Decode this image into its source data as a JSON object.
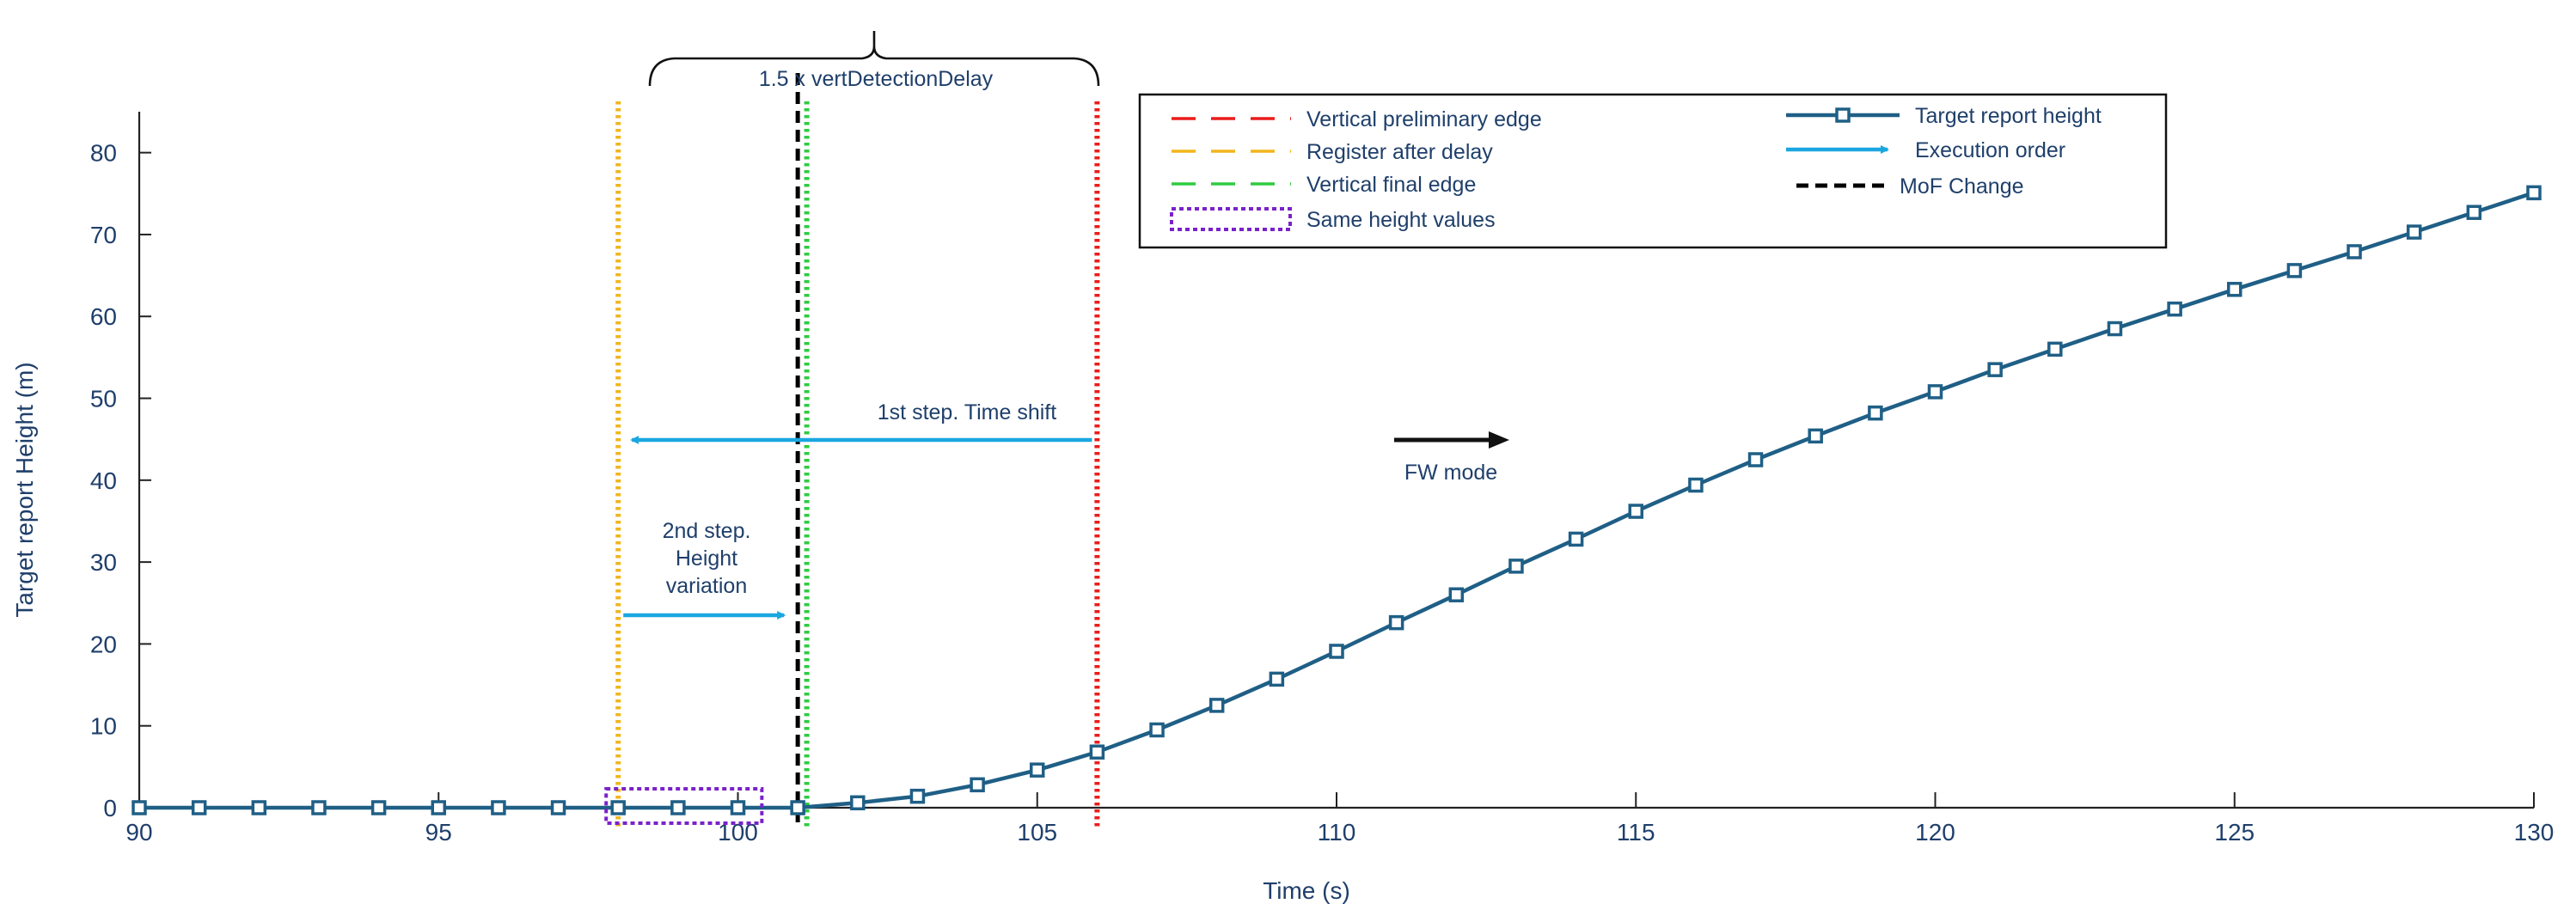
{
  "chart_data": {
    "type": "line",
    "xlabel": "Time (s)",
    "ylabel": "Target report Height (m)",
    "xlim": [
      90,
      130
    ],
    "ylim": [
      0,
      85
    ],
    "x_ticks": [
      90,
      95,
      100,
      105,
      110,
      115,
      120,
      125,
      130
    ],
    "y_ticks": [
      0,
      10,
      20,
      30,
      40,
      50,
      60,
      70,
      80
    ],
    "grid": false,
    "legend_position": "top",
    "series": [
      {
        "name": "Target report height",
        "color": "#1f5f86",
        "marker": "square",
        "x": [
          90,
          91,
          92,
          93,
          94,
          95,
          96,
          97,
          98,
          99,
          100,
          101,
          102,
          103,
          104,
          105,
          106,
          107,
          108,
          109,
          110,
          111,
          112,
          113,
          114,
          115,
          116,
          117,
          118,
          119,
          120,
          121,
          122,
          123,
          124,
          125,
          126,
          127,
          128,
          129,
          130
        ],
        "y": [
          0,
          0,
          0,
          0,
          0,
          0,
          0,
          0,
          0,
          0,
          0,
          0,
          0.6,
          1.4,
          2.8,
          4.6,
          6.8,
          9.5,
          12.5,
          15.7,
          19.1,
          22.6,
          26.0,
          29.5,
          32.8,
          36.2,
          39.4,
          42.5,
          45.4,
          48.2,
          50.8,
          53.5,
          56.0,
          58.5,
          60.9,
          63.3,
          65.6,
          67.9,
          70.3,
          72.7,
          75.1
        ]
      }
    ],
    "vertical_markers": [
      {
        "x": 98.0,
        "color": "#f2b51a",
        "style": "dotted",
        "label": "Register after delay"
      },
      {
        "x": 101.0,
        "color": "#000000",
        "style": "dashed",
        "label": "MoF Change"
      },
      {
        "x": 101.15,
        "color": "#2ecc40",
        "style": "dotted",
        "label": "Vertical final edge"
      },
      {
        "x": 106.0,
        "color": "#ea1c1c",
        "style": "dotted",
        "label": "Vertical preliminary edge"
      }
    ],
    "annotations": {
      "brace_label": "1.5 x vertDetectionDelay",
      "time_shift": "1st step. Time shift",
      "height_variation": [
        "2nd step.",
        "Height",
        "variation"
      ],
      "fw_mode": "FW mode"
    },
    "legend": [
      {
        "label": "Vertical preliminary edge",
        "color": "#ea1c1c",
        "kind": "dash"
      },
      {
        "label": "Register after delay",
        "color": "#f2b51a",
        "kind": "dash"
      },
      {
        "label": "Vertical final edge",
        "color": "#2ecc40",
        "kind": "dash"
      },
      {
        "label": "Same height values",
        "color": "#7a22c9",
        "kind": "box"
      },
      {
        "label": "Target report height",
        "color": "#1f5f86",
        "kind": "line-marker"
      },
      {
        "label": "Execution order",
        "color": "#1aa7e0",
        "kind": "arrow"
      },
      {
        "label": "MoF Change",
        "color": "#000000",
        "kind": "black-dash"
      }
    ]
  }
}
